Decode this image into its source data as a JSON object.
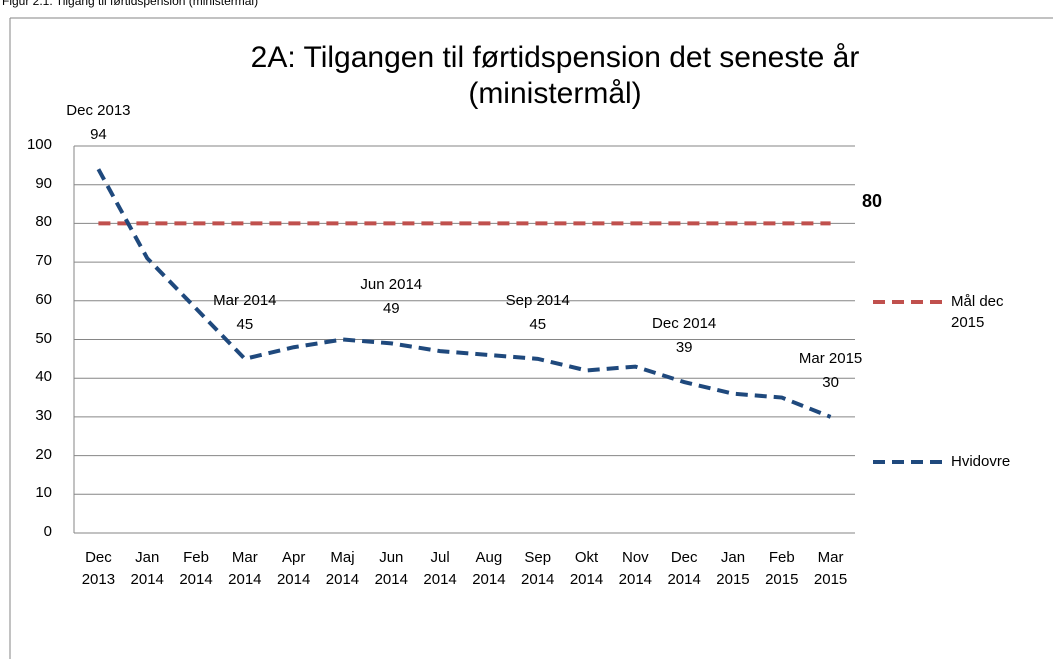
{
  "caption": "Figur 2.1: Tilgang til førtidspension (ministermål)",
  "chart_data": {
    "type": "line",
    "title": "2A: Tilgangen til førtidspension det seneste år (ministermål)",
    "categories": [
      "Dec 2013",
      "Jan 2014",
      "Feb 2014",
      "Mar 2014",
      "Apr 2014",
      "Maj 2014",
      "Jun 2014",
      "Jul 2014",
      "Aug 2014",
      "Sep 2014",
      "Okt 2014",
      "Nov 2014",
      "Dec 2014",
      "Jan 2015",
      "Feb 2015",
      "Mar 2015"
    ],
    "series": [
      {
        "name": "Mål dec 2015",
        "color": "#c0504d",
        "dash": true,
        "values": [
          80,
          80,
          80,
          80,
          80,
          80,
          80,
          80,
          80,
          80,
          80,
          80,
          80,
          80,
          80,
          80
        ],
        "value_labels": [
          null,
          null,
          null,
          null,
          null,
          null,
          null,
          null,
          null,
          null,
          null,
          null,
          null,
          null,
          null,
          "80"
        ]
      },
      {
        "name": "Hvidovre",
        "color": "#1f497d",
        "dash": true,
        "values": [
          94,
          71,
          58,
          45,
          48,
          50,
          49,
          47,
          46,
          45,
          42,
          43,
          39,
          36,
          35,
          30
        ],
        "value_labels": [
          "94",
          null,
          null,
          "45",
          null,
          null,
          "49",
          null,
          null,
          "45",
          null,
          null,
          "39",
          null,
          null,
          "30"
        ]
      }
    ],
    "ylim": [
      0,
      100
    ],
    "yticks": [
      0,
      10,
      20,
      30,
      40,
      50,
      60,
      70,
      80,
      90,
      100
    ],
    "grid": true,
    "legend": "right"
  }
}
